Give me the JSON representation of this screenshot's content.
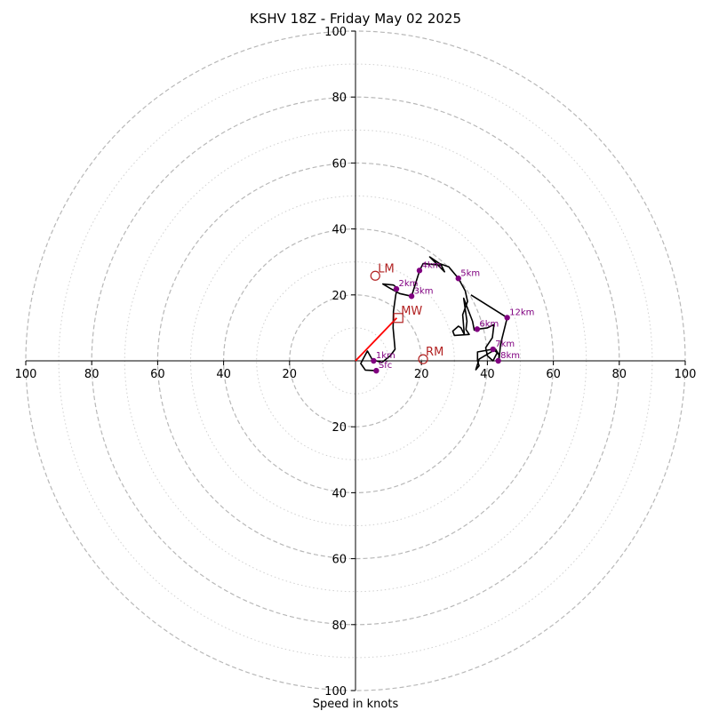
{
  "chart_data": {
    "type": "hodograph",
    "title": "KSHV 18Z - Friday May 02 2025",
    "xlabel": "Speed in knots",
    "ylabel": "",
    "axis_range": [
      -100,
      100
    ],
    "ring_major": [
      20,
      40,
      60,
      80,
      100
    ],
    "ring_minor": [
      10,
      30,
      50,
      70,
      90
    ],
    "tick_labels": [
      "20",
      "40",
      "60",
      "80",
      "100"
    ],
    "colors": {
      "trace": "#000000",
      "height_marker": "#800080",
      "motion": "#b22222",
      "mean_wind_vector": "#ff0000",
      "ring_major": "#b8b8b8",
      "ring_minor": "#d0d0d0"
    },
    "trace": [
      [
        6.5,
        -3
      ],
      [
        3,
        -2.8
      ],
      [
        1.6,
        -0.8
      ],
      [
        3.6,
        3
      ],
      [
        5,
        0.5
      ],
      [
        6.3,
        0
      ],
      [
        8,
        -0.5
      ],
      [
        10.5,
        1.5
      ],
      [
        12,
        3.5
      ],
      [
        11.4,
        10
      ],
      [
        11.5,
        15
      ],
      [
        12.2,
        20
      ],
      [
        12.7,
        22
      ],
      [
        11.5,
        23
      ],
      [
        8.3,
        23.3
      ],
      [
        10.5,
        22
      ],
      [
        13.4,
        20.4
      ],
      [
        17,
        19.6
      ],
      [
        19.5,
        27.5
      ],
      [
        20.5,
        29.5
      ],
      [
        26,
        29
      ],
      [
        27,
        27
      ],
      [
        22.5,
        31.5
      ],
      [
        25.5,
        29.5
      ],
      [
        28.3,
        28.5
      ],
      [
        31.2,
        25
      ],
      [
        33.3,
        21.2
      ],
      [
        34,
        18
      ],
      [
        32.5,
        14
      ],
      [
        33,
        8
      ],
      [
        32,
        10
      ],
      [
        31.2,
        10.5
      ],
      [
        29.5,
        9
      ],
      [
        30,
        7.7
      ],
      [
        34.5,
        8
      ],
      [
        33.5,
        9.5
      ],
      [
        33.8,
        12
      ],
      [
        32.8,
        19
      ],
      [
        35.5,
        12
      ],
      [
        36,
        9.3
      ],
      [
        36.9,
        9.6
      ],
      [
        40,
        10
      ],
      [
        42,
        11
      ],
      [
        41.5,
        7
      ],
      [
        39.5,
        4
      ],
      [
        40,
        1.5
      ],
      [
        41.7,
        0
      ],
      [
        43,
        2.5
      ],
      [
        41.5,
        3.5
      ],
      [
        37,
        2.7
      ],
      [
        37,
        0
      ],
      [
        37.5,
        -1.5
      ],
      [
        36.5,
        -2.7
      ],
      [
        37.5,
        0.5
      ],
      [
        42.5,
        3.5
      ],
      [
        43.5,
        1.8
      ],
      [
        43.5,
        0
      ],
      [
        44,
        5
      ],
      [
        46,
        13.1
      ],
      [
        35,
        20
      ]
    ],
    "height_markers": [
      {
        "label": "Sfc",
        "u": 6.3,
        "v": -3
      },
      {
        "label": "1km",
        "u": 5.5,
        "v": 0
      },
      {
        "label": "2km",
        "u": 12.4,
        "v": 21.8
      },
      {
        "label": "3km",
        "u": 17,
        "v": 19.6
      },
      {
        "label": "4km",
        "u": 19.4,
        "v": 27.4
      },
      {
        "label": "5km",
        "u": 31.2,
        "v": 25
      },
      {
        "label": "6km",
        "u": 36.9,
        "v": 9.6
      },
      {
        "label": "7km",
        "u": 41.7,
        "v": 3.5
      },
      {
        "label": "8km",
        "u": 43.3,
        "v": 0
      },
      {
        "label": "12km",
        "u": 46,
        "v": 13.1
      }
    ],
    "motion_markers": [
      {
        "label": "LM",
        "u": 6,
        "v": 25.8,
        "shape": "circle"
      },
      {
        "label": "MW",
        "u": 13,
        "v": 13,
        "shape": "square"
      },
      {
        "label": "RM",
        "u": 20.5,
        "v": 0.5,
        "shape": "circle"
      }
    ],
    "mean_wind_vector": {
      "from": [
        0,
        0
      ],
      "to": [
        12.5,
        13
      ]
    }
  }
}
